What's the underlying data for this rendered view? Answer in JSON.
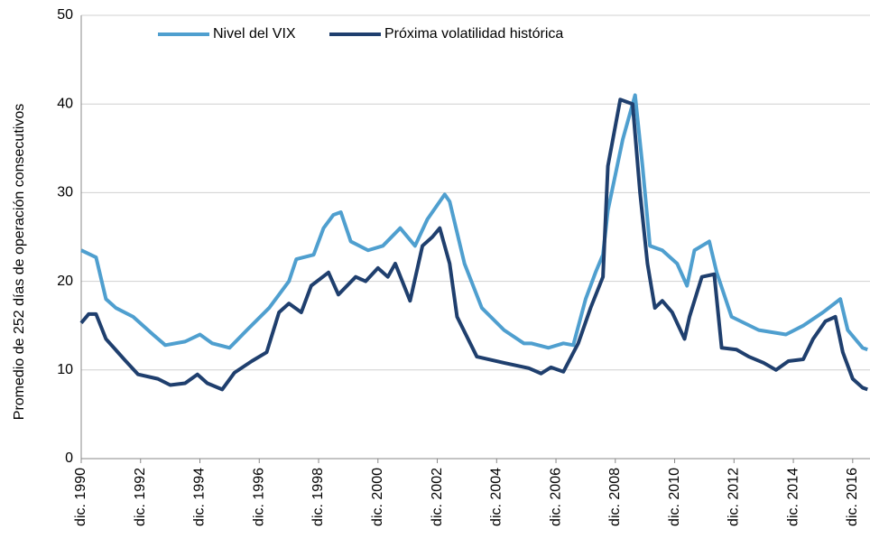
{
  "chart_data": {
    "type": "line",
    "y_label": "Promedio de 252 días de operación consecutivos",
    "ylim": [
      0,
      50
    ],
    "yticks": [
      0,
      10,
      20,
      30,
      40,
      50
    ],
    "xlim": [
      "1990-12",
      "2017-07"
    ],
    "xticks": [
      {
        "value": "1990-12",
        "label": "dic. 1990"
      },
      {
        "value": "1992-12",
        "label": "dic. 1992"
      },
      {
        "value": "1994-12",
        "label": "dic. 1994"
      },
      {
        "value": "1996-12",
        "label": "dic. 1996"
      },
      {
        "value": "1998-12",
        "label": "dic. 1998"
      },
      {
        "value": "2000-12",
        "label": "dic. 2000"
      },
      {
        "value": "2002-12",
        "label": "dic. 2002"
      },
      {
        "value": "2004-12",
        "label": "dic. 2004"
      },
      {
        "value": "2006-12",
        "label": "dic. 2006"
      },
      {
        "value": "2008-12",
        "label": "dic. 2008"
      },
      {
        "value": "2010-12",
        "label": "dic. 2010"
      },
      {
        "value": "2012-12",
        "label": "dic. 2012"
      },
      {
        "value": "2014-12",
        "label": "dic. 2014"
      },
      {
        "value": "2016-12",
        "label": "dic. 2016"
      }
    ],
    "grid": true,
    "legend": "top",
    "series": [
      {
        "name": "Nivel del VIX",
        "color": "#4f9fcf",
        "x": [
          "1990-12",
          "1991-06",
          "1991-10",
          "1992-02",
          "1992-09",
          "1993-05",
          "1993-10",
          "1994-06",
          "1994-12",
          "1995-05",
          "1995-12",
          "1996-07",
          "1997-04",
          "1997-12",
          "1998-03",
          "1998-10",
          "1999-02",
          "1999-06",
          "1999-09",
          "2000-01",
          "2000-08",
          "2001-02",
          "2001-09",
          "2002-03",
          "2002-08",
          "2003-03",
          "2003-05",
          "2003-11",
          "2004-06",
          "2005-03",
          "2005-11",
          "2006-02",
          "2006-09",
          "2007-03",
          "2007-07",
          "2007-12",
          "2008-04",
          "2008-07",
          "2008-09",
          "2009-03",
          "2009-08",
          "2009-11",
          "2010-02",
          "2010-07",
          "2011-01",
          "2011-05",
          "2011-08",
          "2012-02",
          "2012-05",
          "2012-11",
          "2013-10",
          "2014-09",
          "2015-04",
          "2015-12",
          "2016-07",
          "2016-10",
          "2017-04",
          "2017-06"
        ],
        "values": [
          23.5,
          22.7,
          18,
          17,
          16,
          14,
          12.8,
          13.2,
          14,
          13,
          12.5,
          14.5,
          17,
          20,
          22.5,
          23,
          26,
          27.5,
          27.8,
          24.5,
          23.5,
          24,
          26,
          24,
          27,
          29.8,
          29,
          22,
          17,
          14.5,
          13,
          13,
          12.5,
          13,
          12.8,
          18,
          21,
          23,
          28,
          36,
          41,
          33,
          24,
          23.5,
          22,
          19.5,
          23.5,
          24.5,
          21,
          16,
          14.5,
          14,
          15,
          16.5,
          18,
          14.5,
          12.5,
          12.3
        ]
      },
      {
        "name": "Próxima volatilidad histórica",
        "color": "#1f3f6e",
        "x": [
          "1990-12",
          "1991-03",
          "1991-06",
          "1991-10",
          "1992-06",
          "1992-11",
          "1993-07",
          "1993-12",
          "1994-06",
          "1994-11",
          "1995-03",
          "1995-09",
          "1996-02",
          "1996-09",
          "1997-03",
          "1997-08",
          "1997-12",
          "1998-05",
          "1998-09",
          "1999-04",
          "1999-08",
          "2000-03",
          "2000-07",
          "2000-12",
          "2001-04",
          "2001-07",
          "2002-01",
          "2002-06",
          "2002-10",
          "2003-01",
          "2003-05",
          "2003-08",
          "2004-04",
          "2005-03",
          "2006-01",
          "2006-06",
          "2006-10",
          "2007-03",
          "2007-09",
          "2008-02",
          "2008-07",
          "2008-09",
          "2009-02",
          "2009-07",
          "2009-10",
          "2010-01",
          "2010-04",
          "2010-07",
          "2010-11",
          "2011-04",
          "2011-06",
          "2011-11",
          "2012-04",
          "2012-07",
          "2013-01",
          "2013-06",
          "2013-12",
          "2014-05",
          "2014-10",
          "2015-04",
          "2015-08",
          "2016-01",
          "2016-05",
          "2016-08",
          "2016-12",
          "2017-04",
          "2017-06"
        ],
        "values": [
          15.3,
          16.3,
          16.3,
          13.5,
          11,
          9.5,
          9,
          8.3,
          8.5,
          9.5,
          8.5,
          7.8,
          9.7,
          11,
          12,
          16.5,
          17.5,
          16.5,
          19.5,
          21,
          18.5,
          20.5,
          20,
          21.5,
          20.5,
          22,
          17.8,
          24,
          25,
          26,
          22,
          16,
          11.5,
          10.8,
          10.2,
          9.6,
          10.3,
          9.8,
          13,
          17,
          20.5,
          33,
          40.5,
          40,
          30,
          22,
          17,
          17.8,
          16.5,
          13.5,
          16,
          20.5,
          20.8,
          12.5,
          12.3,
          11.5,
          10.8,
          10,
          11,
          11.2,
          13.5,
          15.5,
          16,
          12,
          9,
          8,
          7.8
        ]
      }
    ]
  }
}
